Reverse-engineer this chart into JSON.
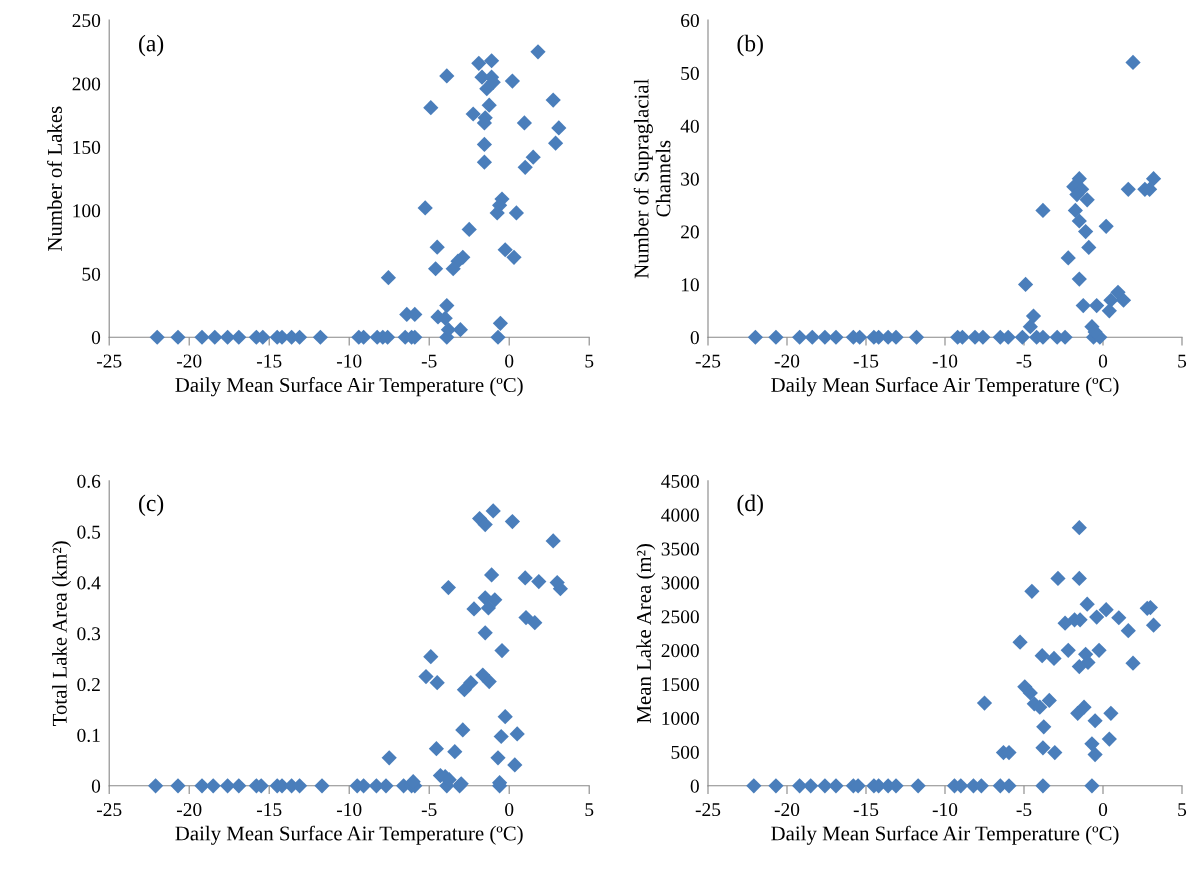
{
  "chart_data": [
    {
      "type": "scatter",
      "marker": "diamond",
      "color": "#4a7ebb",
      "grid": false,
      "legend": false,
      "annotations": [
        "(a)"
      ],
      "xlabel": "Daily Mean Surface Air Temperature (ºC)",
      "ylabel": "Number of Lakes",
      "xlim": [
        -25,
        5
      ],
      "xticks": [
        -25,
        -20,
        -15,
        -10,
        -5,
        0,
        5
      ],
      "ylim": [
        0,
        250
      ],
      "yticks": [
        0,
        50,
        100,
        150,
        200,
        250
      ],
      "x": [
        -22,
        -20.7,
        -19.2,
        -18.4,
        -17.6,
        -16.9,
        -15.8,
        -15.4,
        -14.5,
        -14.2,
        -13.6,
        -13.1,
        -11.8,
        -9.4,
        -9.1,
        -8.25,
        -7.9,
        -7.6,
        -6.5,
        -6.1,
        -5.9,
        -3.9,
        -0.7,
        1.8,
        -1.9,
        -1.1,
        -3.9,
        -1.7,
        -1.1,
        -1.0,
        -1.4,
        0.2,
        2.75,
        -4.9,
        -1.25,
        -2.25,
        -1.5,
        -1.55,
        0.95,
        3.1,
        2.9,
        -1.55,
        1.5,
        -1.55,
        1.0,
        -5.25,
        -0.45,
        -0.6,
        -0.75,
        0.45,
        -2.5,
        -4.5,
        -0.25,
        0.3,
        -2.9,
        -3.2,
        -3.5,
        -4.6,
        -7.55,
        -3.9,
        -6.4,
        -5.9,
        -4.45,
        -4.0,
        -3.05,
        -0.55,
        -3.8
      ],
      "values": [
        0,
        0,
        0,
        0,
        0,
        0,
        0,
        0,
        0,
        0,
        0,
        0,
        0,
        0,
        0,
        0,
        0,
        0,
        0,
        0,
        0,
        0,
        0,
        225,
        216,
        218,
        206,
        205,
        205,
        201,
        196,
        202,
        187,
        181,
        183,
        176,
        173,
        169,
        169,
        165,
        153,
        152,
        142,
        138,
        134,
        102,
        109,
        104,
        98,
        98,
        85,
        71,
        69,
        63,
        63,
        60,
        54,
        54,
        47,
        25,
        18,
        18,
        16,
        15,
        6,
        11,
        6
      ]
    },
    {
      "type": "scatter",
      "marker": "diamond",
      "color": "#4a7ebb",
      "grid": false,
      "legend": false,
      "annotations": [
        "(b)"
      ],
      "xlabel": "Daily Mean Surface Air Temperature (ºC)",
      "ylabel": "Number of Supraglacial\nChannels",
      "xlim": [
        -25,
        5
      ],
      "xticks": [
        -25,
        -20,
        -15,
        -10,
        -5,
        0,
        5
      ],
      "ylim": [
        0,
        60
      ],
      "yticks": [
        0,
        10,
        20,
        30,
        40,
        50,
        60
      ],
      "x": [
        -22,
        -20.7,
        -19.2,
        -18.4,
        -17.6,
        -16.9,
        -15.8,
        -15.4,
        -14.5,
        -14.2,
        -13.6,
        -13.1,
        -11.8,
        -9.2,
        -8.9,
        -8.1,
        -7.6,
        -6.5,
        -6.0,
        -5.1,
        -4.2,
        -3.8,
        -2.9,
        -2.4,
        -0.6,
        -0.2,
        1.9,
        3.2,
        2.65,
        2.95,
        1.6,
        -1.5,
        -1.85,
        -1.35,
        -1.65,
        -1.0,
        -3.8,
        -1.75,
        -1.5,
        0.2,
        -1.1,
        -0.9,
        -2.2,
        -1.5,
        -4.9,
        0.95,
        0.5,
        1.3,
        -1.25,
        -0.4,
        0.4,
        -4.4,
        -4.6,
        -0.7,
        -0.5
      ],
      "values": [
        0,
        0,
        0,
        0,
        0,
        0,
        0,
        0,
        0,
        0,
        0,
        0,
        0,
        0,
        0,
        0,
        0,
        0,
        0,
        0,
        0,
        0,
        0,
        0,
        0,
        0,
        52,
        30,
        28,
        28,
        28,
        30,
        28.5,
        28,
        27,
        26,
        24,
        24,
        22,
        21,
        20,
        17,
        15,
        11,
        10,
        8.5,
        7,
        7,
        6,
        6,
        5,
        4,
        2,
        2,
        1
      ]
    },
    {
      "type": "scatter",
      "marker": "diamond",
      "color": "#4a7ebb",
      "grid": false,
      "legend": false,
      "annotations": [
        "(c)"
      ],
      "xlabel": "Daily Mean Surface Air Temperature (ºC)",
      "ylabel": "Total Lake Area (km²)",
      "xlim": [
        -25,
        5
      ],
      "xticks": [
        -25,
        -20,
        -15,
        -10,
        -5,
        0,
        5
      ],
      "ylim": [
        0,
        0.6
      ],
      "yticks": [
        0,
        0.1,
        0.2,
        0.3,
        0.4,
        0.5,
        0.6
      ],
      "x": [
        -22.1,
        -20.7,
        -19.2,
        -18.5,
        -17.6,
        -16.9,
        -15.8,
        -15.5,
        -14.5,
        -14.2,
        -13.6,
        -13.1,
        -11.7,
        -9.5,
        -9.1,
        -8.3,
        -7.7,
        -6.6,
        -6.1,
        -5.9,
        -3.9,
        -3.1,
        -0.6,
        -1.0,
        -1.85,
        -1.5,
        0.2,
        2.75,
        -1.1,
        -3.8,
        1.0,
        1.85,
        3.0,
        3.2,
        -1.5,
        -0.9,
        -1.3,
        -2.2,
        1.05,
        1.6,
        -1.5,
        -0.45,
        -4.9,
        -5.2,
        -4.5,
        -1.65,
        -1.25,
        -2.8,
        -2.4,
        -0.25,
        -2.9,
        -0.5,
        0.5,
        -4.55,
        -3.4,
        -7.5,
        -0.7,
        0.35,
        -4.3,
        -4.0,
        -3.75,
        -3.0,
        -0.6,
        -6.0
      ],
      "values": [
        0,
        0,
        0,
        0,
        0,
        0,
        0,
        0,
        0,
        0,
        0,
        0,
        0,
        0,
        0,
        0,
        0,
        0,
        0,
        0,
        0,
        0,
        0,
        0.541,
        0.526,
        0.514,
        0.52,
        0.482,
        0.415,
        0.39,
        0.409,
        0.402,
        0.4,
        0.388,
        0.37,
        0.366,
        0.35,
        0.348,
        0.331,
        0.321,
        0.301,
        0.266,
        0.254,
        0.215,
        0.203,
        0.218,
        0.205,
        0.189,
        0.203,
        0.136,
        0.11,
        0.097,
        0.102,
        0.073,
        0.067,
        0.055,
        0.055,
        0.041,
        0.02,
        0.018,
        0.012,
        0.004,
        0.006,
        0.008
      ]
    },
    {
      "type": "scatter",
      "marker": "diamond",
      "color": "#4a7ebb",
      "grid": false,
      "legend": false,
      "annotations": [
        "(d)"
      ],
      "xlabel": "Daily Mean Surface Air Temperature (ºC)",
      "ylabel": "Mean Lake Area (m²)",
      "xlim": [
        -25,
        5
      ],
      "xticks": [
        -25,
        -20,
        -15,
        -10,
        -5,
        0,
        5
      ],
      "ylim": [
        0,
        4500
      ],
      "yticks": [
        0,
        500,
        1000,
        1500,
        2000,
        2500,
        3000,
        3500,
        4000,
        4500
      ],
      "x": [
        -22.1,
        -20.7,
        -19.2,
        -18.5,
        -17.6,
        -16.9,
        -15.8,
        -15.5,
        -14.5,
        -14.2,
        -13.6,
        -13.1,
        -11.7,
        -9.4,
        -9.0,
        -8.2,
        -7.7,
        -6.5,
        -5.95,
        -3.8,
        -0.7,
        -1.5,
        -2.85,
        -1.5,
        -4.5,
        -1.0,
        0.2,
        2.8,
        3.0,
        -0.4,
        1.0,
        1.6,
        3.2,
        -2.4,
        -1.8,
        -1.45,
        -5.25,
        -2.2,
        -3.85,
        -3.1,
        -1.1,
        -0.25,
        -0.95,
        -1.5,
        1.9,
        -4.95,
        -4.6,
        -3.4,
        -4.35,
        -4.0,
        -7.5,
        -1.2,
        -1.6,
        0.5,
        -3.75,
        -0.5,
        -3.8,
        -3.05,
        0.4,
        -0.7,
        -0.5,
        -6.3,
        -5.95
      ],
      "values": [
        0,
        0,
        0,
        0,
        0,
        0,
        0,
        0,
        0,
        0,
        0,
        0,
        0,
        0,
        0,
        0,
        0,
        0,
        0,
        0,
        0,
        3810,
        3060,
        3060,
        2870,
        2680,
        2600,
        2620,
        2630,
        2490,
        2480,
        2290,
        2370,
        2400,
        2450,
        2450,
        2120,
        2000,
        1920,
        1880,
        1940,
        2000,
        1820,
        1760,
        1810,
        1460,
        1370,
        1260,
        1210,
        1160,
        1220,
        1160,
        1070,
        1070,
        870,
        960,
        560,
        490,
        690,
        620,
        460,
        490,
        490
      ]
    }
  ]
}
